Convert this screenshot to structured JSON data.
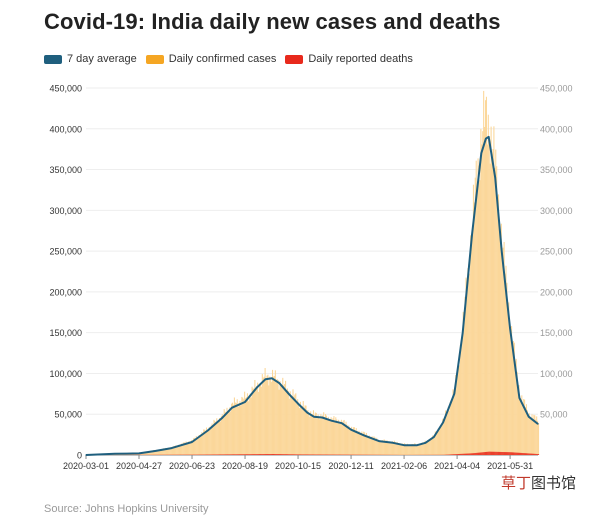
{
  "header": {
    "title": "Covid-19: India daily new cases and deaths"
  },
  "source": "Source: Johns Hopkins University",
  "watermark": {
    "accent": "草丁",
    "rest": "图书馆"
  },
  "colors": {
    "avg": "#1f5f7e",
    "cases": "#fbd79a",
    "cases_legend": "#f5a623",
    "deaths": "#e8291c",
    "grid": "#eeeeee"
  },
  "chart_data": {
    "type": "bar",
    "title": "Covid-19: India daily new cases and deaths",
    "xlabel": "",
    "ylabel": "",
    "ylim": [
      0,
      450000
    ],
    "yticks": [
      0,
      50000,
      100000,
      150000,
      200000,
      250000,
      300000,
      350000,
      400000,
      450000
    ],
    "ytick_labels": [
      "0",
      "50,000",
      "100,000",
      "150,000",
      "200,000",
      "250,000",
      "300,000",
      "350,000",
      "400,000",
      "450,000"
    ],
    "x_range": [
      "2020-03-01",
      "2021-06-30"
    ],
    "xtick_labels": [
      "2020-03-01",
      "2020-04-27",
      "2020-06-23",
      "2020-08-19",
      "2020-10-15",
      "2020-12-11",
      "2021-02-06",
      "2021-04-04",
      "2021-05-31"
    ],
    "grid": true,
    "legend": "top-left",
    "series": [
      {
        "name": "7 day average",
        "kind": "line",
        "x": [
          "2020-03-01",
          "2020-04-01",
          "2020-04-27",
          "2020-05-15",
          "2020-06-01",
          "2020-06-23",
          "2020-07-10",
          "2020-07-25",
          "2020-08-05",
          "2020-08-19",
          "2020-09-01",
          "2020-09-10",
          "2020-09-17",
          "2020-09-25",
          "2020-10-05",
          "2020-10-15",
          "2020-10-25",
          "2020-11-01",
          "2020-11-10",
          "2020-11-20",
          "2020-12-01",
          "2020-12-11",
          "2020-12-25",
          "2021-01-10",
          "2021-01-25",
          "2021-02-06",
          "2021-02-20",
          "2021-03-01",
          "2021-03-10",
          "2021-03-20",
          "2021-04-01",
          "2021-04-10",
          "2021-04-20",
          "2021-04-30",
          "2021-05-05",
          "2021-05-08",
          "2021-05-15",
          "2021-05-22",
          "2021-05-31",
          "2021-06-10",
          "2021-06-20",
          "2021-06-30"
        ],
        "values": [
          0,
          1500,
          2000,
          5000,
          8500,
          16000,
          30000,
          45000,
          58000,
          65000,
          83000,
          93000,
          94000,
          88000,
          75000,
          63000,
          52000,
          47000,
          46000,
          42000,
          39000,
          31000,
          24000,
          17000,
          15000,
          12000,
          12000,
          15000,
          22000,
          40000,
          75000,
          150000,
          270000,
          370000,
          388000,
          390000,
          340000,
          250000,
          155000,
          70000,
          47000,
          38000
        ]
      },
      {
        "name": "Daily confirmed cases",
        "kind": "bar",
        "x": [
          "2020-03-01",
          "2020-04-01",
          "2020-04-27",
          "2020-05-15",
          "2020-06-01",
          "2020-06-23",
          "2020-07-10",
          "2020-07-25",
          "2020-08-05",
          "2020-08-19",
          "2020-09-01",
          "2020-09-10",
          "2020-09-17",
          "2020-09-25",
          "2020-10-05",
          "2020-10-15",
          "2020-10-25",
          "2020-11-01",
          "2020-11-10",
          "2020-11-20",
          "2020-12-01",
          "2020-12-11",
          "2020-12-25",
          "2021-01-10",
          "2021-01-25",
          "2021-02-06",
          "2021-02-20",
          "2021-03-01",
          "2021-03-10",
          "2021-03-20",
          "2021-04-01",
          "2021-04-10",
          "2021-04-20",
          "2021-04-30",
          "2021-05-05",
          "2021-05-08",
          "2021-05-15",
          "2021-05-22",
          "2021-05-31",
          "2021-06-10",
          "2021-06-20",
          "2021-06-30"
        ],
        "values": [
          0,
          1800,
          2500,
          6000,
          9500,
          18000,
          33000,
          48000,
          62000,
          70000,
          86000,
          97000,
          96000,
          90000,
          78000,
          66000,
          54000,
          49000,
          48000,
          44000,
          41000,
          33000,
          26000,
          18000,
          16000,
          13000,
          13000,
          16000,
          24000,
          43000,
          80000,
          160000,
          290000,
          400000,
          412000,
          405000,
          350000,
          260000,
          160000,
          75000,
          50000,
          42000
        ]
      },
      {
        "name": "Daily reported deaths",
        "kind": "bar",
        "x": [
          "2020-03-01",
          "2020-06-23",
          "2020-08-19",
          "2020-09-17",
          "2020-10-15",
          "2020-12-11",
          "2021-02-06",
          "2021-03-20",
          "2021-04-20",
          "2021-05-08",
          "2021-05-31",
          "2021-06-30"
        ],
        "values": [
          0,
          400,
          900,
          1200,
          700,
          400,
          120,
          250,
          2100,
          4100,
          3400,
          1100
        ]
      }
    ]
  }
}
